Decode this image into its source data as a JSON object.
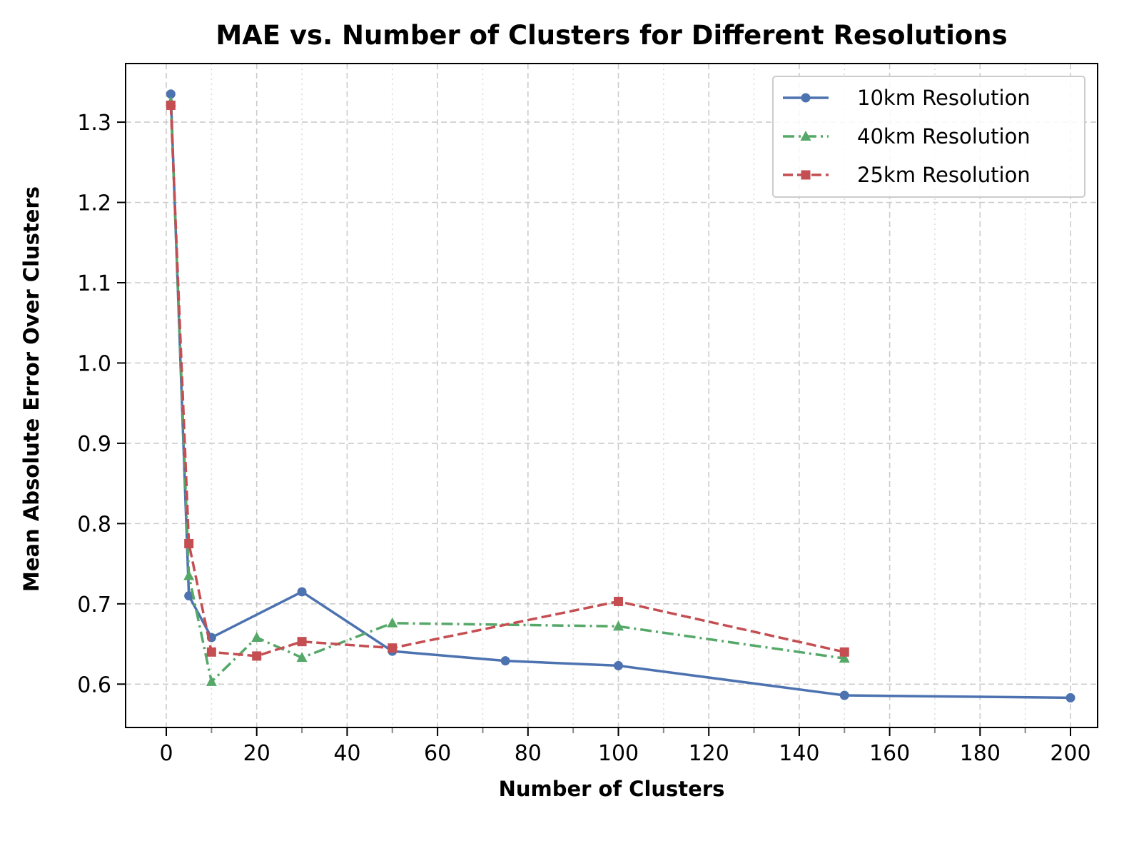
{
  "chart_data": {
    "type": "line",
    "title": "MAE vs. Number of Clusters for Different Resolutions",
    "xlabel": "Number of Clusters",
    "ylabel": "Mean Absolute Error Over Clusters",
    "xlim": [
      -9,
      206
    ],
    "ylim": [
      0.546,
      1.373
    ],
    "xticks": [
      0,
      20,
      40,
      60,
      80,
      100,
      120,
      140,
      160,
      180,
      200
    ],
    "xtick_labels": [
      "0",
      "20",
      "40",
      "60",
      "80",
      "100",
      "120",
      "140",
      "160",
      "180",
      "200"
    ],
    "yticks": [
      0.6,
      0.7,
      0.8,
      0.9,
      1.0,
      1.1,
      1.2,
      1.3
    ],
    "ytick_labels": [
      "0.6",
      "0.7",
      "0.8",
      "0.9",
      "1.0",
      "1.1",
      "1.2",
      "1.3"
    ],
    "x_minor_ticks": [
      10,
      30,
      50,
      70,
      90,
      110,
      130,
      150,
      170,
      190
    ],
    "grid": true,
    "legend_position": "top-right",
    "series": [
      {
        "name": "10km Resolution",
        "color": "#4c72b0",
        "line_style": "solid",
        "marker": "circle",
        "x": [
          1,
          5,
          10,
          30,
          50,
          75,
          100,
          150,
          200
        ],
        "y": [
          1.335,
          0.71,
          0.658,
          0.715,
          0.641,
          0.629,
          0.623,
          0.586,
          0.583
        ]
      },
      {
        "name": "40km Resolution",
        "color": "#55a868",
        "line_style": "dashdot",
        "marker": "triangle",
        "x": [
          1,
          5,
          10,
          20,
          30,
          50,
          100,
          150
        ],
        "y": [
          1.325,
          0.735,
          0.603,
          0.658,
          0.633,
          0.676,
          0.672,
          0.632
        ]
      },
      {
        "name": "25km Resolution",
        "color": "#c44e52",
        "line_style": "dashed",
        "marker": "square",
        "x": [
          1,
          5,
          10,
          20,
          30,
          50,
          100,
          150
        ],
        "y": [
          1.321,
          0.775,
          0.64,
          0.635,
          0.653,
          0.645,
          0.703,
          0.64
        ]
      }
    ]
  }
}
